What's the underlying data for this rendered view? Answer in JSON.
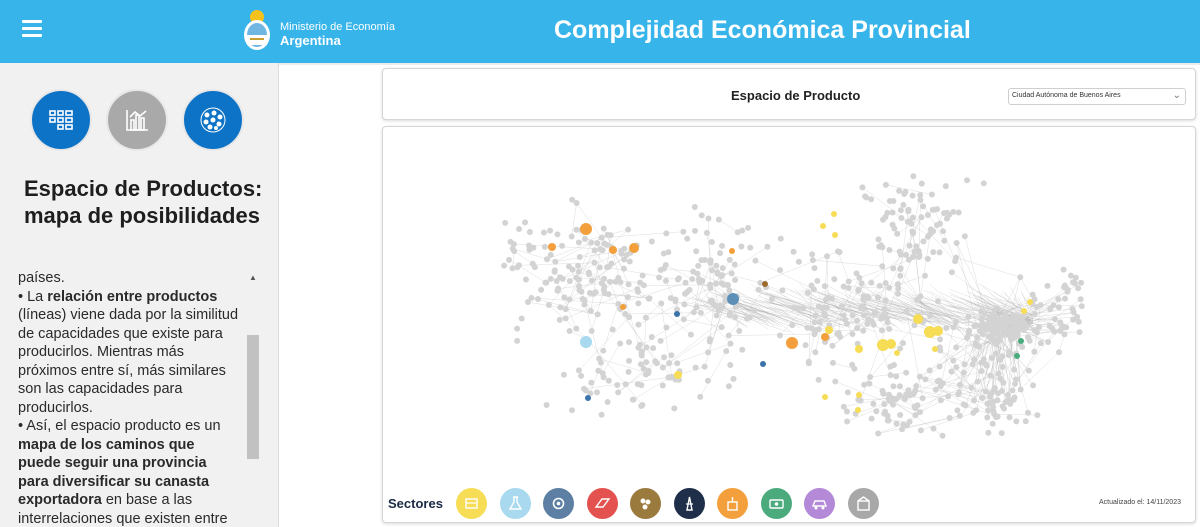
{
  "header": {
    "logo_line1": "Ministerio de Economía",
    "logo_line2": "Argentina",
    "title": "Complejidad Económica Provincial",
    "menu_icon": "hamburger-icon"
  },
  "sidebar": {
    "views": [
      {
        "icon": "treemap-icon",
        "color": "#0d73c6"
      },
      {
        "icon": "bar-chart-icon",
        "color": "#a9a9a9"
      },
      {
        "icon": "network-icon",
        "color": "#0d73c6"
      }
    ],
    "title": "Espacio de Productos: mapa de posibilidades",
    "text_parts": [
      {
        "text": "países.",
        "bold": false
      },
      {
        "text": "\n• La ",
        "bold": false
      },
      {
        "text": "relación entre productos",
        "bold": true
      },
      {
        "text": " (líneas) viene dada por la similitud de capacidades que existe para producirlos. Mientras más próximos entre sí, más similares son las capacidades para producirlos.",
        "bold": false
      },
      {
        "text": "\n• Así, el espacio producto es un ",
        "bold": false
      },
      {
        "text": "mapa de los caminos que puede seguir una provincia para diversificar su canasta exportadora",
        "bold": true
      },
      {
        "text": " en base a las interrelaciones que existen entre productos.",
        "bold": false
      }
    ]
  },
  "panel": {
    "title": "Espacio de Producto",
    "province": "Ciudad Autónoma de Buenos Aires"
  },
  "sectors": {
    "label": "Sectores",
    "items": [
      {
        "icon": "food-icon",
        "color": "#f7dc55"
      },
      {
        "icon": "chemicals-icon",
        "color": "#a8d9ee"
      },
      {
        "icon": "machinery-icon",
        "color": "#5c7fa3"
      },
      {
        "icon": "metals-icon",
        "color": "#e3524e"
      },
      {
        "icon": "minerals-icon",
        "color": "#9b7a3e"
      },
      {
        "icon": "oil-icon",
        "color": "#1f2f4a"
      },
      {
        "icon": "agriculture-icon",
        "color": "#f3a03c"
      },
      {
        "icon": "textiles-icon",
        "color": "#4bab7d"
      },
      {
        "icon": "vehicles-icon",
        "color": "#b48ad8"
      },
      {
        "icon": "other-icon",
        "color": "#a8a8a8"
      }
    ]
  },
  "updated": "Actualizado el: 14/11/2023"
}
